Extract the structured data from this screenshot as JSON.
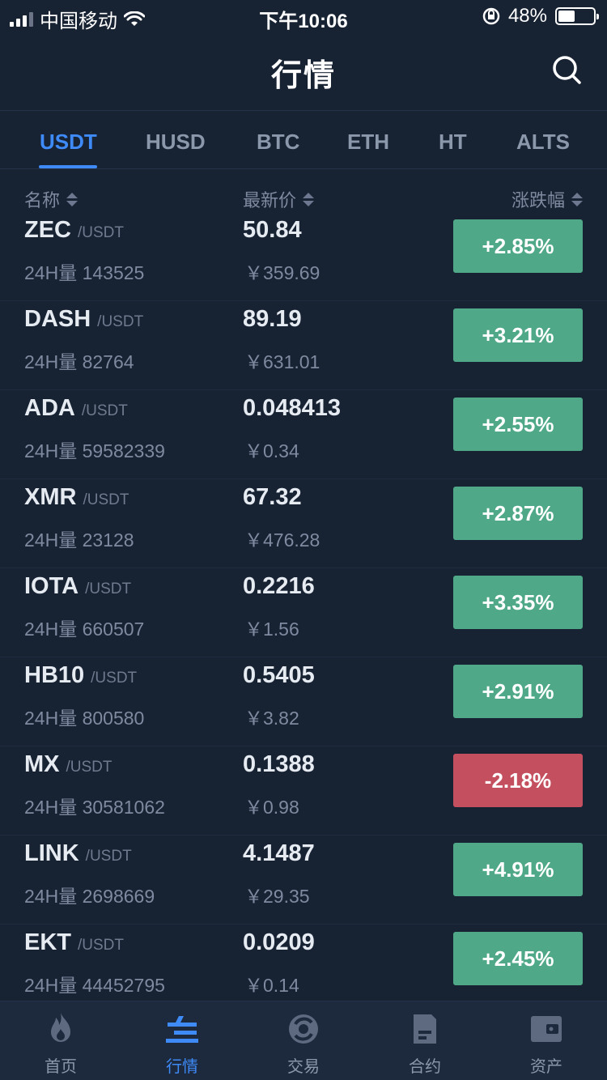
{
  "status_bar": {
    "carrier": "中国移动",
    "time": "下午10:06",
    "battery": "48%",
    "battery_level": 0.48
  },
  "header": {
    "title": "行情",
    "search_icon": "search-icon"
  },
  "tabs": [
    {
      "label": "USDT",
      "active": true
    },
    {
      "label": "HUSD",
      "active": false
    },
    {
      "label": "BTC",
      "active": false
    },
    {
      "label": "ETH",
      "active": false
    },
    {
      "label": "HT",
      "active": false
    },
    {
      "label": "ALTS",
      "active": false
    }
  ],
  "columns": {
    "name": "名称",
    "latest_price": "最新价",
    "change": "涨跌幅"
  },
  "markets": [
    {
      "symbol": "ZEC",
      "quote": "/USDT",
      "volume": "24H量 143525",
      "price": "50.84",
      "cny": "￥359.69",
      "change": "+2.85%",
      "direction": "up"
    },
    {
      "symbol": "DASH",
      "quote": "/USDT",
      "volume": "24H量 82764",
      "price": "89.19",
      "cny": "￥631.01",
      "change": "+3.21%",
      "direction": "up"
    },
    {
      "symbol": "ADA",
      "quote": "/USDT",
      "volume": "24H量 59582339",
      "price": "0.048413",
      "cny": "￥0.34",
      "change": "+2.55%",
      "direction": "up"
    },
    {
      "symbol": "XMR",
      "quote": "/USDT",
      "volume": "24H量 23128",
      "price": "67.32",
      "cny": "￥476.28",
      "change": "+2.87%",
      "direction": "up"
    },
    {
      "symbol": "IOTA",
      "quote": "/USDT",
      "volume": "24H量 660507",
      "price": "0.2216",
      "cny": "￥1.56",
      "change": "+3.35%",
      "direction": "up"
    },
    {
      "symbol": "HB10",
      "quote": "/USDT",
      "volume": "24H量 800580",
      "price": "0.5405",
      "cny": "￥3.82",
      "change": "+2.91%",
      "direction": "up"
    },
    {
      "symbol": "MX",
      "quote": "/USDT",
      "volume": "24H量 30581062",
      "price": "0.1388",
      "cny": "￥0.98",
      "change": "-2.18%",
      "direction": "down"
    },
    {
      "symbol": "LINK",
      "quote": "/USDT",
      "volume": "24H量 2698669",
      "price": "4.1487",
      "cny": "￥29.35",
      "change": "+4.91%",
      "direction": "up"
    },
    {
      "symbol": "EKT",
      "quote": "/USDT",
      "volume": "24H量 44452795",
      "price": "0.0209",
      "cny": "￥0.14",
      "change": "+2.45%",
      "direction": "up"
    }
  ],
  "bottom_nav": [
    {
      "label": "首页",
      "icon": "flame-icon",
      "active": false
    },
    {
      "label": "行情",
      "icon": "market-icon",
      "active": true
    },
    {
      "label": "交易",
      "icon": "exchange-icon",
      "active": false
    },
    {
      "label": "合约",
      "icon": "contract-icon",
      "active": false
    },
    {
      "label": "资产",
      "icon": "wallet-icon",
      "active": false
    }
  ],
  "colors": {
    "background": "#172233",
    "accent": "#3e8af7",
    "up": "#4fa887",
    "down": "#c4505f"
  }
}
